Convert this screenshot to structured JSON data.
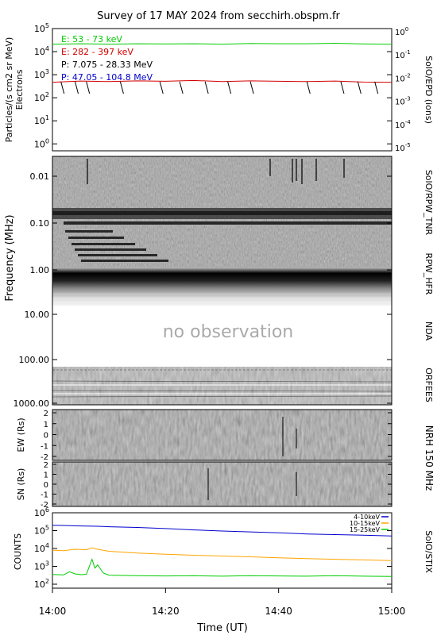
{
  "title": "Survey of 17 MAY 2024 from secchirh.obspm.fr",
  "x_axis": {
    "label": "Time (UT)",
    "range": [
      "14:00",
      "15:00"
    ],
    "ticks": [
      "14:00",
      "14:20",
      "14:40",
      "15:00"
    ]
  },
  "chart_data": [
    {
      "type": "line",
      "panel": "SolO/EPD",
      "left_label": "Particles/(s cm2 sr MeV)",
      "left_sublabel": "Electrons",
      "right_label": "SolO/EPD  (ions)",
      "yscale": "log",
      "ylim_left": [
        0.5,
        100000
      ],
      "yticks_left": [
        "10^0",
        "10^1",
        "10^2",
        "10^3",
        "10^4",
        "10^5"
      ],
      "yticks_right": [
        "10^-5",
        "10^-4",
        "10^-3",
        "10^-2",
        "10^-1",
        "10^0"
      ],
      "series": [
        {
          "name": "E: 53 - 73 keV",
          "color": "#00cc00",
          "x": [
            0,
            5,
            10,
            15,
            20,
            25,
            30,
            35,
            40,
            45,
            50,
            55,
            60
          ],
          "values": [
            21000,
            22000,
            21000,
            22000,
            21500,
            22000,
            21000,
            22500,
            22000,
            22000,
            23000,
            21500,
            21000
          ]
        },
        {
          "name": "E: 282 - 397 keV",
          "color": "#d40000",
          "x": [
            0,
            5,
            10,
            15,
            20,
            25,
            30,
            35,
            40,
            45,
            50,
            55,
            60
          ],
          "values": [
            470,
            530,
            500,
            540,
            520,
            560,
            500,
            540,
            520,
            500,
            530,
            480,
            470
          ]
        },
        {
          "name": "P: 7.075 - 28.33 MeV",
          "color": "#000000"
        },
        {
          "name": "P: 47.05 - 104.8 MeV",
          "color": "#0000cc"
        }
      ]
    },
    {
      "type": "heatmap",
      "panel": "SolO/RPW_TNR",
      "ylabel": "Frequency (MHz)",
      "yticks": [
        "0.01",
        "0.10",
        "1.00",
        "10.00",
        "100.00",
        "1000.00"
      ],
      "right_labels": [
        "SolO/RPW_TNR",
        "RPW_HFR",
        "NDA",
        "ORFEES"
      ],
      "annotation": "no observation"
    },
    {
      "type": "heatmap",
      "panel": "NRH 150 MHz",
      "right_label": "NRH 150 MHz",
      "sub_panels": [
        {
          "ylabel": "EW (Rs)",
          "yticks": [
            "2",
            "1",
            "0",
            "-1",
            "-2"
          ]
        },
        {
          "ylabel": "SN (Rs)",
          "yticks": [
            "2",
            "1",
            "0",
            "-1",
            "-2"
          ]
        }
      ]
    },
    {
      "type": "line",
      "panel": "SolO/STIX",
      "ylabel": "COUNTS",
      "right_label": "SolO/STIX",
      "yscale": "log",
      "ylim": [
        60,
        1000000
      ],
      "yticks": [
        "10^2",
        "10^3",
        "10^4",
        "10^5",
        "10^6"
      ],
      "series": [
        {
          "name": "4-10keV",
          "color": "#0000cc",
          "x": [
            0,
            2,
            4,
            6,
            8,
            10,
            15,
            20,
            25,
            30,
            35,
            40,
            45,
            50,
            55,
            60
          ],
          "values": [
            200000,
            195000,
            185000,
            180000,
            175000,
            165000,
            150000,
            130000,
            110000,
            95000,
            85000,
            75000,
            65000,
            60000,
            55000,
            50000
          ]
        },
        {
          "name": "10-15keV",
          "color": "#ffa500",
          "x": [
            0,
            2,
            4,
            6,
            7,
            8,
            10,
            15,
            20,
            25,
            30,
            35,
            40,
            45,
            50,
            55,
            60
          ],
          "values": [
            8000,
            7500,
            9000,
            8500,
            11000,
            9000,
            7000,
            5500,
            4800,
            4200,
            3800,
            3400,
            3000,
            2700,
            2500,
            2300,
            2100
          ]
        },
        {
          "name": "15-25keV",
          "color": "#00cc00",
          "x": [
            0,
            2,
            3,
            4,
            5,
            6,
            7,
            7.5,
            8,
            9,
            10,
            15,
            20,
            25,
            30,
            35,
            40,
            45,
            50,
            55,
            60
          ],
          "values": [
            350,
            330,
            500,
            380,
            340,
            360,
            2500,
            800,
            1200,
            420,
            320,
            300,
            290,
            300,
            280,
            300,
            290,
            280,
            300,
            280,
            270
          ]
        }
      ]
    }
  ]
}
